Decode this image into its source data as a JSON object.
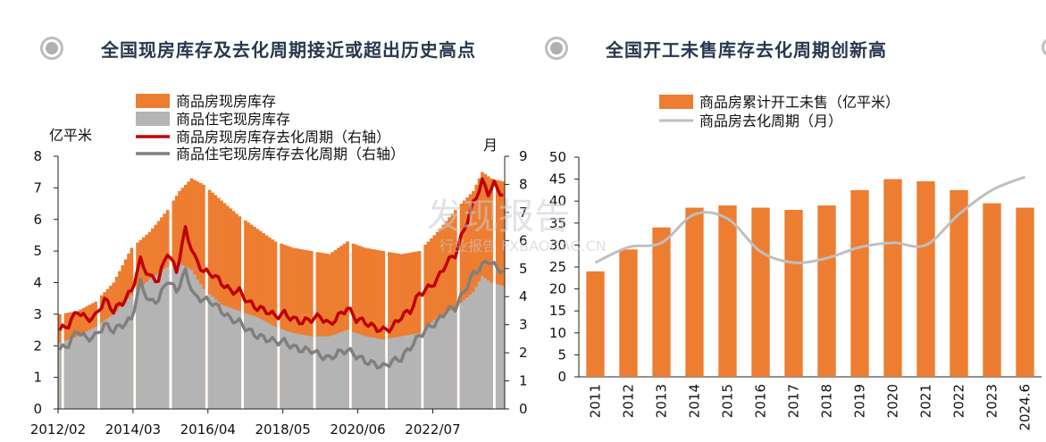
{
  "left_panel": {
    "title": "全国现房库存及去化周期接近或超出历史高点",
    "bullet_icon": "bullet-circle-icon"
  },
  "right_panel": {
    "title": "全国开工未售库存去化周期创新高",
    "bullet_icon": "bullet-circle-icon"
  },
  "watermark": {
    "main": "发现报告",
    "sub": "行业报告 FXBAOGAO.CN"
  },
  "colors": {
    "orange": "#ed7d31",
    "gray_bar": "#b4b4b4",
    "red_line": "#c00000",
    "gray_line": "#7f7f7f",
    "light_line": "#bfbfbf",
    "title": "#26384e"
  },
  "chart_data": [
    {
      "type": "bar",
      "title": "",
      "ylabel_left": "亿平米",
      "ylabel_right": "月",
      "ylim_left": [
        0,
        8
      ],
      "ylim_right": [
        0,
        9
      ],
      "yticks_left": [
        "0",
        "1",
        "2",
        "3",
        "4",
        "5",
        "6",
        "7",
        "8"
      ],
      "yticks_right": [
        "0",
        "1",
        "2",
        "3",
        "4",
        "5",
        "6",
        "7",
        "8",
        "9"
      ],
      "xtick_labels": [
        "2012/02",
        "2014/03",
        "2016/04",
        "2018/05",
        "2020/06",
        "2022/07"
      ],
      "legend_position": "top-left",
      "x_start": "2012/02",
      "x_end": "2024/06",
      "series": [
        {
          "name": "商品房现房库存",
          "kind": "bar",
          "axis": "left",
          "anchors": [
            [
              0,
              3.0
            ],
            [
              6,
              3.1
            ],
            [
              12,
              3.4
            ],
            [
              18,
              4.0
            ],
            [
              24,
              5.1
            ],
            [
              30,
              5.6
            ],
            [
              36,
              6.3
            ],
            [
              40,
              6.9
            ],
            [
              44,
              7.3
            ],
            [
              48,
              7.1
            ],
            [
              54,
              6.6
            ],
            [
              60,
              6.1
            ],
            [
              66,
              5.7
            ],
            [
              72,
              5.3
            ],
            [
              78,
              5.1
            ],
            [
              84,
              5.0
            ],
            [
              90,
              4.9
            ],
            [
              96,
              5.3
            ],
            [
              102,
              5.1
            ],
            [
              108,
              5.0
            ],
            [
              114,
              4.9
            ],
            [
              120,
              5.0
            ],
            [
              126,
              5.6
            ],
            [
              132,
              6.3
            ],
            [
              138,
              6.9
            ],
            [
              141,
              7.5
            ],
            [
              144,
              7.3
            ],
            [
              148,
              7.2
            ]
          ]
        },
        {
          "name": "商品住宅现房库存",
          "kind": "bar",
          "axis": "left",
          "anchors": [
            [
              0,
              2.1
            ],
            [
              6,
              2.3
            ],
            [
              12,
              2.6
            ],
            [
              18,
              3.0
            ],
            [
              24,
              3.6
            ],
            [
              30,
              4.1
            ],
            [
              36,
              4.5
            ],
            [
              40,
              4.6
            ],
            [
              44,
              4.4
            ],
            [
              48,
              3.8
            ],
            [
              54,
              3.3
            ],
            [
              60,
              3.1
            ],
            [
              66,
              2.9
            ],
            [
              72,
              2.6
            ],
            [
              78,
              2.4
            ],
            [
              84,
              2.3
            ],
            [
              90,
              2.3
            ],
            [
              96,
              2.5
            ],
            [
              102,
              2.3
            ],
            [
              108,
              2.2
            ],
            [
              114,
              2.3
            ],
            [
              120,
              2.4
            ],
            [
              126,
              2.9
            ],
            [
              132,
              3.2
            ],
            [
              138,
              3.7
            ],
            [
              141,
              4.2
            ],
            [
              144,
              4.0
            ],
            [
              148,
              3.9
            ]
          ]
        },
        {
          "name": "商品房现房库存去化周期（右轴）",
          "kind": "line",
          "axis": "right",
          "anchors": [
            [
              0,
              2.8
            ],
            [
              3,
              3.0
            ],
            [
              6,
              3.5
            ],
            [
              9,
              3.2
            ],
            [
              12,
              3.3
            ],
            [
              15,
              3.9
            ],
            [
              18,
              3.5
            ],
            [
              21,
              3.8
            ],
            [
              24,
              4.2
            ],
            [
              27,
              5.3
            ],
            [
              30,
              4.7
            ],
            [
              33,
              4.6
            ],
            [
              36,
              5.6
            ],
            [
              39,
              4.9
            ],
            [
              42,
              6.4
            ],
            [
              45,
              5.4
            ],
            [
              48,
              4.9
            ],
            [
              51,
              4.8
            ],
            [
              54,
              4.5
            ],
            [
              57,
              4.2
            ],
            [
              60,
              4.2
            ],
            [
              63,
              3.8
            ],
            [
              66,
              3.6
            ],
            [
              69,
              3.5
            ],
            [
              72,
              3.3
            ],
            [
              75,
              3.4
            ],
            [
              78,
              3.2
            ],
            [
              81,
              3.1
            ],
            [
              84,
              3.2
            ],
            [
              87,
              3.3
            ],
            [
              90,
              3.0
            ],
            [
              93,
              3.3
            ],
            [
              96,
              3.6
            ],
            [
              99,
              3.2
            ],
            [
              102,
              3.1
            ],
            [
              105,
              2.9
            ],
            [
              108,
              2.8
            ],
            [
              111,
              2.9
            ],
            [
              114,
              3.3
            ],
            [
              117,
              3.5
            ],
            [
              120,
              4.1
            ],
            [
              123,
              4.3
            ],
            [
              126,
              4.6
            ],
            [
              129,
              5.2
            ],
            [
              132,
              5.5
            ],
            [
              135,
              6.4
            ],
            [
              138,
              7.3
            ],
            [
              141,
              8.1
            ],
            [
              143,
              7.7
            ],
            [
              145,
              8.0
            ],
            [
              148,
              7.6
            ]
          ]
        },
        {
          "name": "商品住宅现房库存去化周期（右轴）",
          "kind": "line",
          "axis": "right",
          "anchors": [
            [
              0,
              2.1
            ],
            [
              3,
              2.3
            ],
            [
              6,
              2.8
            ],
            [
              9,
              2.5
            ],
            [
              12,
              2.6
            ],
            [
              15,
              3.0
            ],
            [
              18,
              2.8
            ],
            [
              21,
              3.0
            ],
            [
              24,
              3.2
            ],
            [
              27,
              4.5
            ],
            [
              30,
              3.8
            ],
            [
              33,
              3.9
            ],
            [
              36,
              4.6
            ],
            [
              39,
              4.2
            ],
            [
              42,
              4.9
            ],
            [
              45,
              4.0
            ],
            [
              48,
              3.9
            ],
            [
              51,
              3.8
            ],
            [
              54,
              3.5
            ],
            [
              57,
              3.2
            ],
            [
              60,
              3.1
            ],
            [
              63,
              2.8
            ],
            [
              66,
              2.6
            ],
            [
              69,
              2.5
            ],
            [
              72,
              2.4
            ],
            [
              75,
              2.4
            ],
            [
              78,
              2.2
            ],
            [
              81,
              2.1
            ],
            [
              84,
              2.1
            ],
            [
              87,
              1.9
            ],
            [
              90,
              1.8
            ],
            [
              93,
              2.0
            ],
            [
              96,
              2.1
            ],
            [
              99,
              1.9
            ],
            [
              102,
              1.7
            ],
            [
              105,
              1.6
            ],
            [
              108,
              1.5
            ],
            [
              111,
              1.7
            ],
            [
              114,
              1.8
            ],
            [
              117,
              2.2
            ],
            [
              120,
              2.6
            ],
            [
              123,
              2.9
            ],
            [
              126,
              3.1
            ],
            [
              129,
              3.5
            ],
            [
              132,
              3.6
            ],
            [
              135,
              4.2
            ],
            [
              138,
              4.8
            ],
            [
              141,
              5.1
            ],
            [
              143,
              5.3
            ],
            [
              145,
              5.1
            ],
            [
              148,
              4.9
            ]
          ]
        }
      ]
    },
    {
      "type": "bar",
      "title": "",
      "ylim": [
        0,
        50
      ],
      "yticks": [
        "0",
        "5",
        "10",
        "15",
        "20",
        "25",
        "30",
        "35",
        "40",
        "45",
        "50"
      ],
      "legend_position": "top-left",
      "categories": [
        "2011",
        "2012",
        "2013",
        "2014",
        "2015",
        "2016",
        "2017",
        "2018",
        "2019",
        "2020",
        "2021",
        "2022",
        "2023",
        "2024.6"
      ],
      "series": [
        {
          "name": "商品房累计开工未售（亿平米）",
          "kind": "bar",
          "values": [
            24,
            29,
            34,
            38.5,
            39,
            38.5,
            38,
            39,
            42.5,
            45,
            44.5,
            42.5,
            39.5,
            38.5
          ]
        },
        {
          "name": "商品房去化周期（月）",
          "kind": "line",
          "values": [
            26,
            29.5,
            30.5,
            37,
            36,
            28.5,
            26,
            27,
            29.5,
            30.5,
            30,
            37,
            42.5,
            45.5
          ]
        }
      ]
    }
  ]
}
